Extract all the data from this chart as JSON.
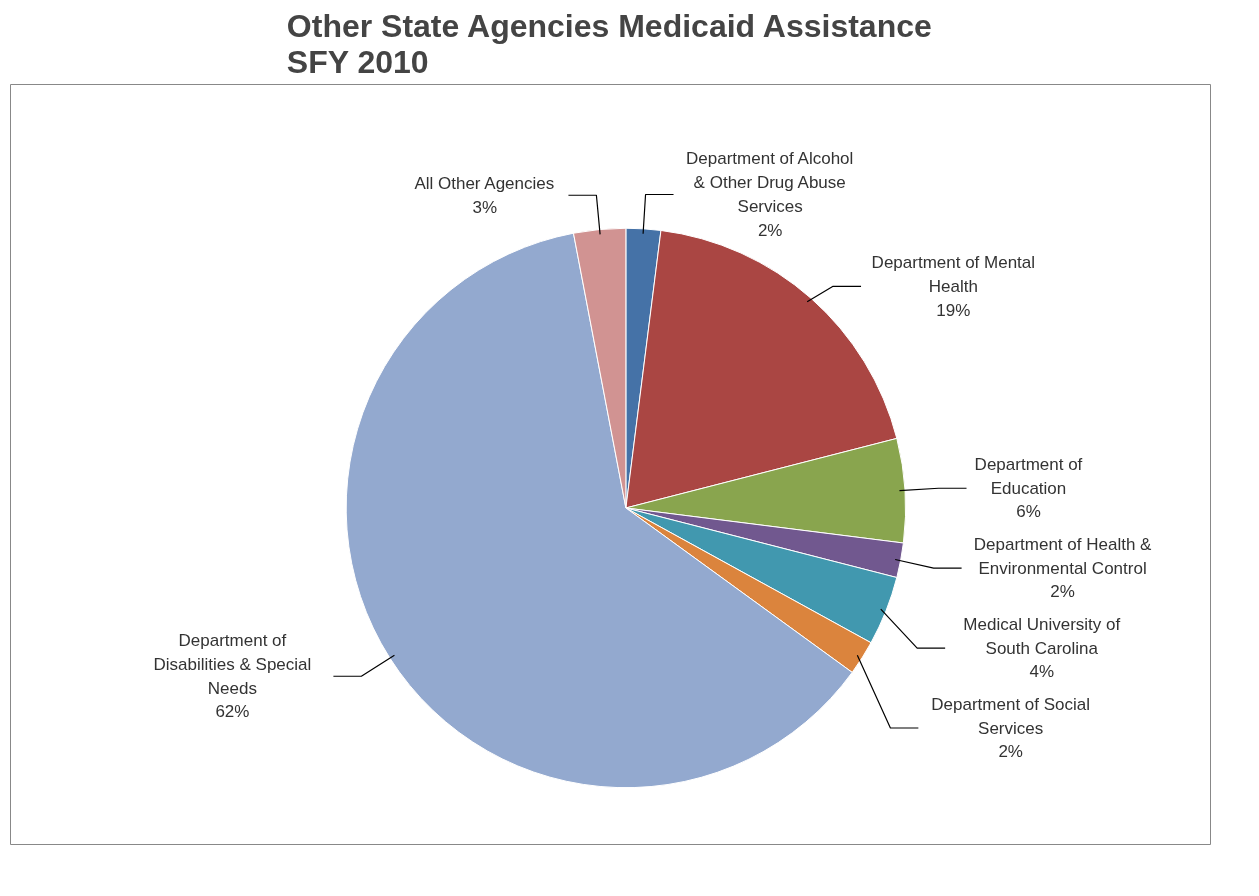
{
  "chart_data": {
    "type": "pie",
    "title": "Other State Agencies Medicaid Assistance\nSFY 2010",
    "categories": [
      "Department of Alcohol & Other Drug Abuse Services",
      "Department of Mental Health",
      "Department of Education",
      "Department of Health & Environmental Control",
      "Medical University of South Carolina",
      "Department of Social Services",
      "Department of Disabilities & Special Needs",
      "All Other Agencies"
    ],
    "values": [
      2,
      19,
      6,
      2,
      4,
      2,
      62,
      3
    ],
    "value_labels": [
      "2%",
      "19%",
      "6%",
      "2%",
      "4%",
      "2%",
      "62%",
      "3%"
    ],
    "colors": [
      "#4572a7",
      "#aa4643",
      "#89a54e",
      "#71588f",
      "#4198af",
      "#db843d",
      "#93a9cf",
      "#d19392"
    ]
  }
}
